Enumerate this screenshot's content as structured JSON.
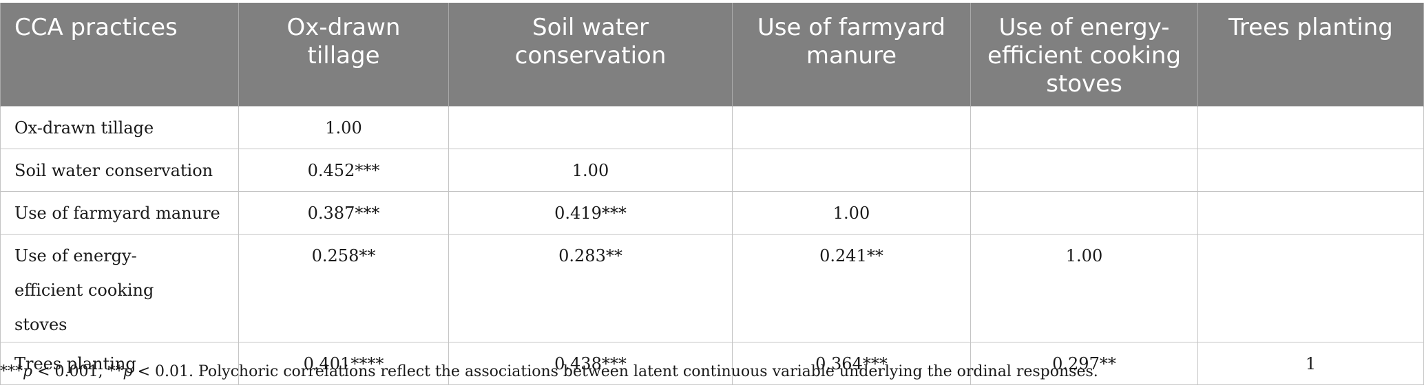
{
  "table": {
    "headers": [
      "CCA practices",
      "Ox-drawn tillage",
      "Soil water conservation",
      "Use of farmyard manure",
      "Use of energy-efficient cooking stoves",
      "Trees planting"
    ],
    "rows": [
      {
        "label": "Ox-drawn tillage",
        "cells": [
          "1.00",
          "",
          "",
          "",
          ""
        ]
      },
      {
        "label": "Soil water conservation",
        "cells": [
          "0.452***",
          "1.00",
          "",
          "",
          ""
        ]
      },
      {
        "label": "Use of farmyard manure",
        "cells": [
          "0.387***",
          "0.419***",
          "1.00",
          "",
          ""
        ]
      },
      {
        "label": "Use of energy-efficient cooking stoves",
        "cells": [
          "0.258**",
          "0.283**",
          "0.241**",
          "1.00",
          ""
        ]
      },
      {
        "label": "Trees planting",
        "cells": [
          "0.401****",
          "0.438***",
          "0.364***",
          "0.297**",
          "1"
        ]
      }
    ]
  },
  "footnote": {
    "sig1_stars": "***",
    "sig1_p": "p",
    "sig1_rest": " < 0.001, ",
    "sig2_stars": "**",
    "sig2_p": "p",
    "sig2_rest": " < 0.01. Polychoric correlations reflect the associations between latent continuous variable underlying the ordinal responses."
  },
  "colors": {
    "header_bg": "#808080",
    "header_text": "#ffffff",
    "grid": "#c4c4c4"
  }
}
